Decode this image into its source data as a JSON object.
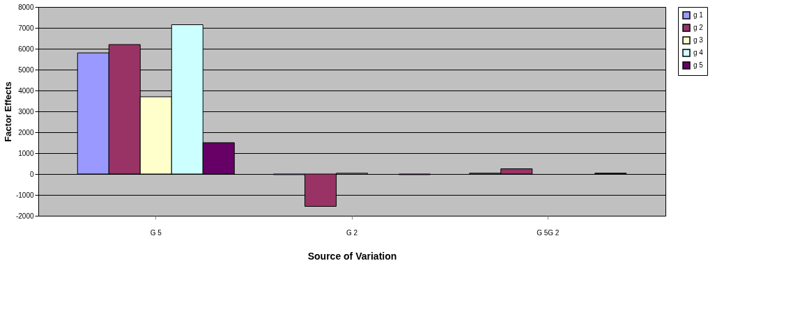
{
  "chart_data": {
    "type": "bar",
    "xlabel": "Source of Variation",
    "ylabel": "Factor Effects",
    "categories": [
      "G 5",
      "G 2",
      "G 5G 2"
    ],
    "series": [
      {
        "name": "g 1",
        "color": "#9999ff",
        "values": [
          5800,
          -30,
          40
        ]
      },
      {
        "name": "g 2",
        "color": "#993366",
        "values": [
          6200,
          -1550,
          250
        ]
      },
      {
        "name": "g 3",
        "color": "#ffffcc",
        "values": [
          3700,
          40,
          null
        ]
      },
      {
        "name": "g 4",
        "color": "#ccffff",
        "values": [
          7150,
          null,
          null
        ]
      },
      {
        "name": "g 5",
        "color": "#660066",
        "values": [
          1500,
          -30,
          40
        ]
      }
    ],
    "ylim": [
      -2000,
      8000
    ],
    "yticks": [
      {
        "value": -2000,
        "label": "-2000"
      },
      {
        "value": -1000,
        "label": "-1000"
      },
      0,
      {
        "value": 1000,
        "label": "1000"
      },
      {
        "value": 2000,
        "label": "2000"
      },
      {
        "value": 3000,
        "label": "3000"
      },
      {
        "value": 4000,
        "label": "4000"
      },
      {
        "value": 5000,
        "label": "5000"
      },
      {
        "value": 6000,
        "label": "6000"
      },
      {
        "value": 7000,
        "label": "7000"
      },
      {
        "value": 8000,
        "label": "8000"
      }
    ],
    "grid": "y",
    "legend": "right"
  }
}
